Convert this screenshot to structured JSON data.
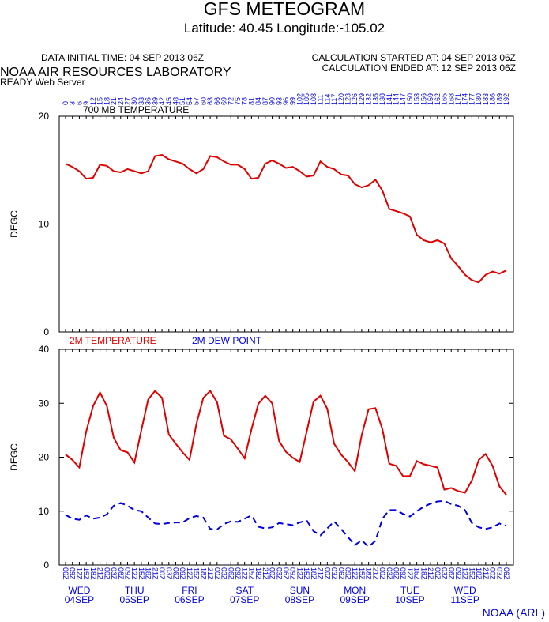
{
  "header": {
    "title": "GFS METEOGRAM",
    "subtitle": "Latitude: 40.45 Longitude:-105.02",
    "initial_time": "DATA INITIAL TIME: 04 SEP 2013 06Z",
    "calc_started": "CALCULATION STARTED AT: 04 SEP 2013 06Z",
    "calc_ended": "CALCULATION ENDED AT: 12 SEP 2013 06Z",
    "lab": "NOAA AIR RESOURCES LABORATORY",
    "server": "READY Web Server"
  },
  "footer": "NOAA (ARL)",
  "chart_data": [
    {
      "type": "line",
      "y_label": "DEGC",
      "categories": [
        0,
        3,
        6,
        9,
        12,
        15,
        18,
        21,
        24,
        27,
        30,
        33,
        36,
        39,
        42,
        45,
        48,
        51,
        54,
        57,
        60,
        63,
        66,
        69,
        72,
        75,
        78,
        81,
        84,
        87,
        90,
        93,
        96,
        99,
        102,
        105,
        108,
        111,
        114,
        117,
        120,
        123,
        126,
        129,
        132,
        135,
        138,
        141,
        144,
        147,
        150,
        153,
        156,
        159,
        162,
        165,
        168,
        171,
        174,
        177,
        180,
        183,
        186,
        189,
        192
      ],
      "ylim": [
        0,
        20
      ],
      "yticks": [
        0,
        10,
        20
      ],
      "series": [
        {
          "name": "700 MB  TEMPERATURE",
          "color": "#e00000",
          "values": [
            15.6,
            15.3,
            14.9,
            14.2,
            14.3,
            15.5,
            15.4,
            14.9,
            14.8,
            15.1,
            14.9,
            14.7,
            14.9,
            16.3,
            16.4,
            16.0,
            15.8,
            15.6,
            15.1,
            14.7,
            15.1,
            16.3,
            16.2,
            15.8,
            15.5,
            15.5,
            15.1,
            14.2,
            14.3,
            15.6,
            15.9,
            15.6,
            15.2,
            15.3,
            14.9,
            14.4,
            14.5,
            15.8,
            15.3,
            15.1,
            14.6,
            14.5,
            13.7,
            13.4,
            13.6,
            14.1,
            13.1,
            11.4,
            11.2,
            11.0,
            10.7,
            9.0,
            8.5,
            8.3,
            8.5,
            8.2,
            6.8,
            6.1,
            5.3,
            4.8,
            4.6,
            5.3,
            5.6,
            5.4,
            5.7
          ]
        }
      ]
    },
    {
      "type": "line",
      "y_label": "DEGC",
      "categories": [
        "06Z",
        "09Z",
        "12Z",
        "15Z",
        "18Z",
        "21Z",
        "00Z",
        "03Z",
        "06Z",
        "09Z",
        "12Z",
        "15Z",
        "18Z",
        "21Z",
        "00Z",
        "03Z",
        "06Z",
        "09Z",
        "12Z",
        "15Z",
        "18Z",
        "21Z",
        "00Z",
        "03Z",
        "06Z",
        "09Z",
        "12Z",
        "15Z",
        "18Z",
        "21Z",
        "00Z",
        "03Z",
        "06Z",
        "09Z",
        "12Z",
        "15Z",
        "18Z",
        "21Z",
        "00Z",
        "03Z",
        "06Z",
        "09Z",
        "12Z",
        "15Z",
        "18Z",
        "21Z",
        "00Z",
        "03Z",
        "06Z",
        "09Z",
        "12Z",
        "15Z",
        "18Z",
        "21Z",
        "00Z",
        "03Z",
        "06Z",
        "09Z",
        "12Z",
        "15Z",
        "18Z",
        "21Z",
        "00Z",
        "03Z",
        "06Z"
      ],
      "day_labels": [
        [
          "WED",
          "04SEP"
        ],
        [
          "THU",
          "05SEP"
        ],
        [
          "FRI",
          "06SEP"
        ],
        [
          "SAT",
          "07SEP"
        ],
        [
          "SUN",
          "08SEP"
        ],
        [
          "MON",
          "09SEP"
        ],
        [
          "TUE",
          "10SEP"
        ],
        [
          "WED",
          "11SEP"
        ]
      ],
      "ylim": [
        0,
        40
      ],
      "yticks": [
        0,
        10,
        20,
        30,
        40
      ],
      "series": [
        {
          "name": "2M TEMPERATURE",
          "color": "#e00000",
          "values": [
            20.5,
            19.5,
            18.1,
            24.8,
            29.5,
            32.0,
            29.5,
            23.6,
            21.3,
            20.9,
            19.0,
            25.0,
            30.7,
            32.3,
            31.0,
            24.2,
            22.5,
            20.9,
            19.5,
            26.2,
            31.0,
            32.3,
            30.2,
            24.0,
            23.3,
            21.6,
            19.8,
            25.2,
            29.9,
            31.4,
            30.0,
            23.0,
            21.0,
            19.9,
            19.1,
            24.7,
            30.3,
            31.4,
            29.0,
            22.5,
            20.5,
            19.1,
            17.4,
            24.1,
            28.9,
            29.1,
            25.2,
            18.8,
            18.4,
            16.5,
            16.5,
            19.3,
            18.7,
            18.4,
            18.1,
            14.0,
            14.3,
            13.7,
            13.4,
            15.7,
            19.5,
            20.6,
            18.4,
            14.6,
            13.0
          ]
        },
        {
          "name": "2M  DEW POINT",
          "color": "#0000e0",
          "dashed": true,
          "values": [
            9.3,
            8.6,
            8.4,
            9.2,
            8.6,
            8.8,
            9.4,
            11.0,
            11.5,
            11.0,
            10.2,
            10.0,
            8.8,
            7.7,
            7.6,
            7.8,
            7.9,
            7.9,
            8.7,
            9.1,
            8.8,
            6.7,
            6.6,
            7.6,
            8.1,
            8.0,
            8.6,
            9.2,
            7.1,
            6.8,
            7.0,
            7.8,
            7.6,
            7.4,
            7.9,
            8.3,
            6.3,
            5.5,
            6.8,
            8.1,
            6.7,
            5.2,
            3.7,
            4.6,
            3.4,
            4.5,
            8.6,
            10.2,
            10.2,
            9.5,
            9.0,
            10.0,
            10.8,
            11.4,
            11.8,
            11.9,
            11.3,
            11.0,
            10.2,
            7.8,
            7.0,
            6.7,
            7.0,
            7.7,
            7.3
          ]
        }
      ]
    }
  ]
}
